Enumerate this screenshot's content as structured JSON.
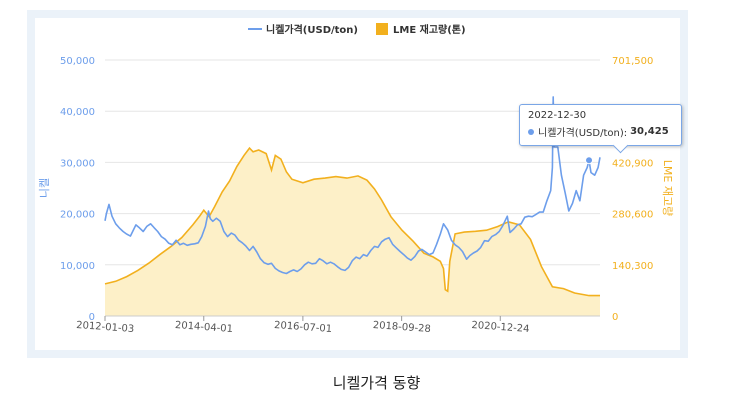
{
  "caption": "니켈가격 동향",
  "tooltip": {
    "date": "2022-12-30",
    "series": "니켈가격(USD/ton):",
    "value": "30,425"
  },
  "colors": {
    "price": "#6d9eeb",
    "inventory_line": "#f2b01e",
    "inventory_fill": "#fdf0c8",
    "grid": "#e6e6e6",
    "frame": "#ebf2f9"
  },
  "chart_data": {
    "type": "line",
    "title": "",
    "legend_position": "top-center",
    "grid": true,
    "x_type": "date",
    "x_range": [
      "2012-01-03",
      "2023-03-31"
    ],
    "x_ticks": [
      "2012-01-03",
      "2014-04-01",
      "2016-07-01",
      "2018-09-28",
      "2020-12-24"
    ],
    "left_axis": {
      "label": "니켈",
      "ylim": [
        0,
        50000
      ],
      "ticks": [
        0,
        10000,
        20000,
        30000,
        40000,
        50000
      ],
      "tick_labels": [
        "0",
        "10,000",
        "20,000",
        "30,000",
        "40,000",
        "50,000"
      ]
    },
    "right_axis": {
      "label": "LME 재고량",
      "ylim": [
        0,
        701500
      ],
      "ticks": [
        0,
        140300,
        280600,
        420900,
        561200,
        701500
      ],
      "tick_labels": [
        "0",
        "140,300",
        "280,600",
        "420,900",
        "561,200",
        "701,500"
      ]
    },
    "series": [
      {
        "name": "니켈가격(USD/ton)",
        "kind": "line",
        "axis": "left",
        "points": [
          [
            "2012-01-03",
            18600
          ],
          [
            "2012-01-15",
            20000
          ],
          [
            "2012-02-05",
            21800
          ],
          [
            "2012-03-01",
            19500
          ],
          [
            "2012-04-01",
            18000
          ],
          [
            "2012-05-01",
            17200
          ],
          [
            "2012-06-01",
            16500
          ],
          [
            "2012-07-01",
            16000
          ],
          [
            "2012-08-01",
            15600
          ],
          [
            "2012-09-15",
            17800
          ],
          [
            "2012-10-15",
            17200
          ],
          [
            "2012-11-15",
            16500
          ],
          [
            "2012-12-15",
            17500
          ],
          [
            "2013-01-15",
            18000
          ],
          [
            "2013-02-15",
            17200
          ],
          [
            "2013-03-15",
            16500
          ],
          [
            "2013-04-15",
            15500
          ],
          [
            "2013-05-15",
            15000
          ],
          [
            "2013-06-15",
            14200
          ],
          [
            "2013-07-15",
            13900
          ],
          [
            "2013-08-15",
            14800
          ],
          [
            "2013-09-15",
            13900
          ],
          [
            "2013-10-15",
            14200
          ],
          [
            "2013-11-15",
            13800
          ],
          [
            "2013-12-15",
            14000
          ],
          [
            "2014-01-15",
            14100
          ],
          [
            "2014-02-15",
            14300
          ],
          [
            "2014-03-15",
            15500
          ],
          [
            "2014-04-15",
            17500
          ],
          [
            "2014-05-10",
            20500
          ],
          [
            "2014-05-25",
            19000
          ],
          [
            "2014-06-15",
            18500
          ],
          [
            "2014-07-15",
            19100
          ],
          [
            "2014-08-15",
            18500
          ],
          [
            "2014-09-15",
            16500
          ],
          [
            "2014-10-15",
            15500
          ],
          [
            "2014-11-15",
            16200
          ],
          [
            "2014-12-15",
            15800
          ],
          [
            "2015-01-15",
            14800
          ],
          [
            "2015-02-15",
            14300
          ],
          [
            "2015-03-15",
            13700
          ],
          [
            "2015-04-15",
            12800
          ],
          [
            "2015-05-15",
            13600
          ],
          [
            "2015-06-15",
            12500
          ],
          [
            "2015-07-15",
            11200
          ],
          [
            "2015-08-15",
            10400
          ],
          [
            "2015-09-15",
            10100
          ],
          [
            "2015-10-15",
            10300
          ],
          [
            "2015-11-15",
            9300
          ],
          [
            "2015-12-15",
            8800
          ],
          [
            "2016-01-15",
            8500
          ],
          [
            "2016-02-15",
            8300
          ],
          [
            "2016-03-15",
            8700
          ],
          [
            "2016-04-15",
            9000
          ],
          [
            "2016-05-15",
            8700
          ],
          [
            "2016-06-15",
            9200
          ],
          [
            "2016-07-15",
            10000
          ],
          [
            "2016-08-15",
            10500
          ],
          [
            "2016-09-15",
            10200
          ],
          [
            "2016-10-15",
            10300
          ],
          [
            "2016-11-15",
            11200
          ],
          [
            "2016-12-15",
            10800
          ],
          [
            "2017-01-15",
            10200
          ],
          [
            "2017-02-15",
            10500
          ],
          [
            "2017-03-15",
            10200
          ],
          [
            "2017-04-15",
            9600
          ],
          [
            "2017-05-15",
            9100
          ],
          [
            "2017-06-15",
            8900
          ],
          [
            "2017-07-15",
            9500
          ],
          [
            "2017-08-15",
            10800
          ],
          [
            "2017-09-15",
            11500
          ],
          [
            "2017-10-15",
            11200
          ],
          [
            "2017-11-15",
            12000
          ],
          [
            "2017-12-15",
            11700
          ],
          [
            "2018-01-15",
            12800
          ],
          [
            "2018-02-15",
            13600
          ],
          [
            "2018-03-15",
            13400
          ],
          [
            "2018-04-15",
            14500
          ],
          [
            "2018-05-15",
            15000
          ],
          [
            "2018-06-15",
            15300
          ],
          [
            "2018-07-15",
            14000
          ],
          [
            "2018-08-15",
            13300
          ],
          [
            "2018-09-15",
            12600
          ],
          [
            "2018-10-15",
            12000
          ],
          [
            "2018-11-15",
            11300
          ],
          [
            "2018-12-15",
            10900
          ],
          [
            "2019-01-15",
            11600
          ],
          [
            "2019-02-15",
            12700
          ],
          [
            "2019-03-15",
            13000
          ],
          [
            "2019-04-15",
            12500
          ],
          [
            "2019-05-15",
            12000
          ],
          [
            "2019-06-15",
            12300
          ],
          [
            "2019-07-15",
            14000
          ],
          [
            "2019-08-15",
            16000
          ],
          [
            "2019-09-10",
            18000
          ],
          [
            "2019-10-15",
            16800
          ],
          [
            "2019-11-15",
            14800
          ],
          [
            "2019-12-15",
            13900
          ],
          [
            "2020-01-15",
            13400
          ],
          [
            "2020-02-15",
            12600
          ],
          [
            "2020-03-20",
            11100
          ],
          [
            "2020-04-15",
            11800
          ],
          [
            "2020-05-15",
            12300
          ],
          [
            "2020-06-15",
            12700
          ],
          [
            "2020-07-15",
            13400
          ],
          [
            "2020-08-15",
            14700
          ],
          [
            "2020-09-15",
            14600
          ],
          [
            "2020-10-15",
            15500
          ],
          [
            "2020-11-15",
            15900
          ],
          [
            "2020-12-15",
            16500
          ],
          [
            "2021-01-15",
            17700
          ],
          [
            "2021-02-20",
            19500
          ],
          [
            "2021-03-15",
            16300
          ],
          [
            "2021-04-15",
            17000
          ],
          [
            "2021-05-15",
            17800
          ],
          [
            "2021-06-15",
            18000
          ],
          [
            "2021-07-15",
            19300
          ],
          [
            "2021-08-15",
            19500
          ],
          [
            "2021-09-15",
            19400
          ],
          [
            "2021-10-15",
            19800
          ],
          [
            "2021-11-15",
            20300
          ],
          [
            "2021-12-15",
            20300
          ],
          [
            "2022-01-15",
            22500
          ],
          [
            "2022-02-15",
            24500
          ],
          [
            "2022-03-01",
            29000
          ],
          [
            "2022-03-08",
            42800
          ],
          [
            "2022-03-15",
            33000
          ],
          [
            "2022-04-15",
            33000
          ],
          [
            "2022-05-15",
            27500
          ],
          [
            "2022-06-15",
            24000
          ],
          [
            "2022-07-15",
            20500
          ],
          [
            "2022-08-15",
            22000
          ],
          [
            "2022-09-15",
            24500
          ],
          [
            "2022-10-15",
            22500
          ],
          [
            "2022-11-15",
            27500
          ],
          [
            "2022-12-15",
            29000
          ],
          [
            "2022-12-30",
            30425
          ],
          [
            "2023-01-15",
            28000
          ],
          [
            "2023-02-15",
            27500
          ],
          [
            "2023-03-15",
            29000
          ],
          [
            "2023-03-31",
            31000
          ]
        ]
      },
      {
        "name": "LME 재고량(톤)",
        "kind": "area",
        "axis": "right",
        "points": [
          [
            "2012-01-03",
            88000
          ],
          [
            "2012-04-01",
            95000
          ],
          [
            "2012-07-01",
            108000
          ],
          [
            "2012-10-01",
            125000
          ],
          [
            "2013-01-01",
            145000
          ],
          [
            "2013-04-01",
            168000
          ],
          [
            "2013-07-01",
            190000
          ],
          [
            "2013-10-01",
            215000
          ],
          [
            "2014-01-01",
            250000
          ],
          [
            "2014-03-01",
            275000
          ],
          [
            "2014-04-01",
            290000
          ],
          [
            "2014-05-15",
            272000
          ],
          [
            "2014-07-01",
            300000
          ],
          [
            "2014-09-01",
            340000
          ],
          [
            "2014-11-01",
            370000
          ],
          [
            "2015-01-01",
            410000
          ],
          [
            "2015-03-01",
            440000
          ],
          [
            "2015-04-15",
            460000
          ],
          [
            "2015-05-15",
            450000
          ],
          [
            "2015-07-01",
            455000
          ],
          [
            "2015-09-01",
            445000
          ],
          [
            "2015-10-15",
            400000
          ],
          [
            "2015-11-15",
            440000
          ],
          [
            "2016-01-01",
            430000
          ],
          [
            "2016-02-15",
            395000
          ],
          [
            "2016-04-01",
            375000
          ],
          [
            "2016-07-01",
            365000
          ],
          [
            "2016-10-01",
            375000
          ],
          [
            "2017-01-01",
            378000
          ],
          [
            "2017-04-01",
            382000
          ],
          [
            "2017-07-01",
            378000
          ],
          [
            "2017-10-01",
            384000
          ],
          [
            "2017-12-15",
            372000
          ],
          [
            "2018-02-15",
            348000
          ],
          [
            "2018-04-15",
            318000
          ],
          [
            "2018-07-01",
            272000
          ],
          [
            "2018-10-01",
            235000
          ],
          [
            "2019-01-01",
            205000
          ],
          [
            "2019-04-01",
            172000
          ],
          [
            "2019-06-15",
            162000
          ],
          [
            "2019-08-15",
            150000
          ],
          [
            "2019-09-10",
            130000
          ],
          [
            "2019-09-25",
            72000
          ],
          [
            "2019-10-15",
            68000
          ],
          [
            "2019-11-01",
            150000
          ],
          [
            "2019-12-15",
            225000
          ],
          [
            "2020-03-01",
            230000
          ],
          [
            "2020-06-01",
            232000
          ],
          [
            "2020-09-01",
            235000
          ],
          [
            "2020-12-01",
            245000
          ],
          [
            "2021-03-01",
            258000
          ],
          [
            "2021-06-01",
            250000
          ],
          [
            "2021-09-01",
            210000
          ],
          [
            "2021-12-01",
            135000
          ],
          [
            "2022-03-01",
            80000
          ],
          [
            "2022-06-01",
            75000
          ],
          [
            "2022-09-01",
            63000
          ],
          [
            "2022-12-30",
            56000
          ],
          [
            "2023-03-31",
            56000
          ]
        ]
      }
    ]
  }
}
